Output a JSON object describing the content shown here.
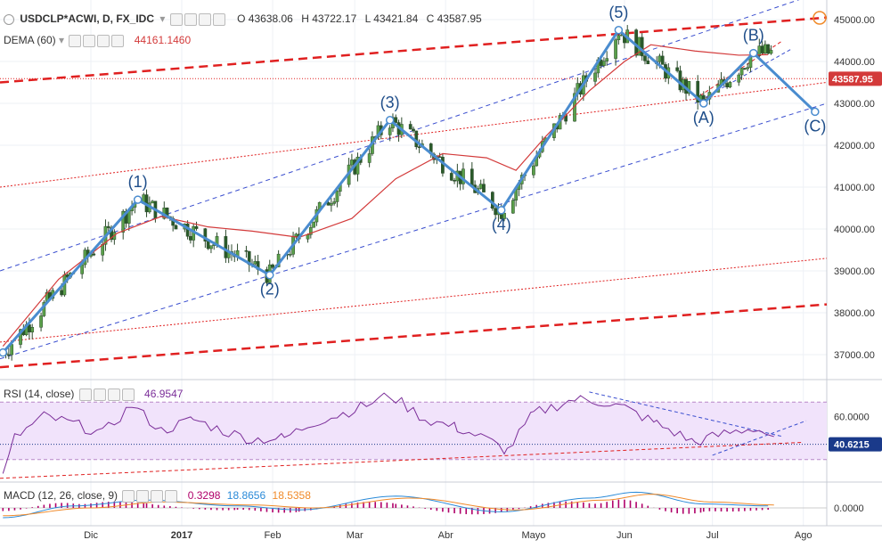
{
  "header": {
    "symbol": "USDCLP*ACWI, D, FX_IDC",
    "o_label": "O",
    "o": "43638.06",
    "h_label": "H",
    "h": "43722.17",
    "l_label": "L",
    "l": "43421.84",
    "c_label": "C",
    "c": "43587.95"
  },
  "dema": {
    "label": "DEMA (60)",
    "value": "44161.1460"
  },
  "rsi": {
    "label": "RSI (14, close)",
    "value": "46.9547",
    "last_badge": "40.6215",
    "tick_60": "60.0000"
  },
  "macd": {
    "label": "MACD (12, 26, close, 9)",
    "v1": "0.3298",
    "v2": "18.8656",
    "v3": "18.5358",
    "tick_0": "0.0000"
  },
  "price_badge": "43587.95",
  "colors": {
    "wave": "#4a8ccf",
    "candle": "#4a8a3a",
    "dema": "#d33a3a",
    "channel_blue": "#3b4fcf",
    "channel_red": "#e02020",
    "rsi_line": "#7b2e99",
    "rsi_band": "#f1e3fb",
    "macd_line": "#2a8ad8",
    "signal_line": "#f08a2a",
    "hist": "#b0006a",
    "badge": "#1a3a8a",
    "price_badge_bg": "#d33a3a"
  },
  "chart_data": {
    "type": "line",
    "title": "USDCLP*ACWI, D, FX_IDC",
    "price_axis_ticks": [
      45000,
      44000,
      43000,
      42000,
      41000,
      40000,
      39000,
      38000,
      37000
    ],
    "price_axis_labels": [
      "45000.00",
      "44000.00",
      "43000.00",
      "42000.00",
      "41000.00",
      "40000.00",
      "39000.00",
      "38000.00",
      "37000.00"
    ],
    "x_tick_labels": [
      "Dic",
      "2017",
      "Feb",
      "Mar",
      "Abr",
      "Mayo",
      "Jun",
      "Jul",
      "Ago"
    ],
    "ylim": [
      36700,
      45200
    ],
    "elliott_wave": {
      "labels": [
        "(1)",
        "(2)",
        "(3)",
        "(4)",
        "(5)",
        "(A)",
        "(B)",
        "(C)"
      ],
      "points": [
        {
          "date": "2016-11-01",
          "price": 37050
        },
        {
          "date": "2016-12-17",
          "price": 40700
        },
        {
          "date": "2017-01-31",
          "price": 38900
        },
        {
          "date": "2017-03-13",
          "price": 42600
        },
        {
          "date": "2017-04-20",
          "price": 40450
        },
        {
          "date": "2017-05-30",
          "price": 44750
        },
        {
          "date": "2017-06-28",
          "price": 43000
        },
        {
          "date": "2017-07-15",
          "price": 44200
        },
        {
          "date": "2017-08-05",
          "price": 42800
        }
      ]
    },
    "series": [
      {
        "name": "DEMA (60)",
        "values": [
          {
            "date": "2016-11-01",
            "price": 37200
          },
          {
            "date": "2016-11-20",
            "price": 38800
          },
          {
            "date": "2016-12-10",
            "price": 39900
          },
          {
            "date": "2016-12-25",
            "price": 40300
          },
          {
            "date": "2017-01-10",
            "price": 40050
          },
          {
            "date": "2017-01-25",
            "price": 39950
          },
          {
            "date": "2017-02-10",
            "price": 39800
          },
          {
            "date": "2017-02-28",
            "price": 40250
          },
          {
            "date": "2017-03-15",
            "price": 41200
          },
          {
            "date": "2017-03-31",
            "price": 41800
          },
          {
            "date": "2017-04-15",
            "price": 41700
          },
          {
            "date": "2017-04-25",
            "price": 41400
          },
          {
            "date": "2017-05-05",
            "price": 42200
          },
          {
            "date": "2017-05-20",
            "price": 43300
          },
          {
            "date": "2017-06-01",
            "price": 44000
          },
          {
            "date": "2017-06-10",
            "price": 44400
          },
          {
            "date": "2017-06-25",
            "price": 44250
          },
          {
            "date": "2017-07-10",
            "price": 44150
          },
          {
            "date": "2017-07-20",
            "price": 44161
          }
        ]
      }
    ],
    "rsi": {
      "ylim": [
        15,
        85
      ],
      "values": [
        {
          "date": "2016-11-01",
          "v": 18
        },
        {
          "date": "2016-11-05",
          "v": 45
        },
        {
          "date": "2016-11-15",
          "v": 60
        },
        {
          "date": "2016-11-25",
          "v": 55
        },
        {
          "date": "2016-12-05",
          "v": 48
        },
        {
          "date": "2016-12-15",
          "v": 68
        },
        {
          "date": "2016-12-25",
          "v": 50
        },
        {
          "date": "2017-01-05",
          "v": 58
        },
        {
          "date": "2017-01-15",
          "v": 50
        },
        {
          "date": "2017-01-25",
          "v": 44
        },
        {
          "date": "2017-02-05",
          "v": 45
        },
        {
          "date": "2017-02-15",
          "v": 56
        },
        {
          "date": "2017-02-25",
          "v": 62
        },
        {
          "date": "2017-03-05",
          "v": 68
        },
        {
          "date": "2017-03-13",
          "v": 75
        },
        {
          "date": "2017-03-25",
          "v": 58
        },
        {
          "date": "2017-04-05",
          "v": 52
        },
        {
          "date": "2017-04-15",
          "v": 44
        },
        {
          "date": "2017-04-22",
          "v": 36
        },
        {
          "date": "2017-05-01",
          "v": 62
        },
        {
          "date": "2017-05-15",
          "v": 72
        },
        {
          "date": "2017-05-25",
          "v": 70
        },
        {
          "date": "2017-06-01",
          "v": 66
        },
        {
          "date": "2017-06-12",
          "v": 55
        },
        {
          "date": "2017-06-25",
          "v": 42
        },
        {
          "date": "2017-07-05",
          "v": 48
        },
        {
          "date": "2017-07-15",
          "v": 52
        },
        {
          "date": "2017-07-22",
          "v": 46
        }
      ],
      "last": 40.6215
    },
    "macd": {
      "macd_line": [
        {
          "date": "2016-11-01",
          "v": -10
        },
        {
          "date": "2016-11-25",
          "v": 2
        },
        {
          "date": "2016-12-20",
          "v": 8
        },
        {
          "date": "2017-01-20",
          "v": 2
        },
        {
          "date": "2017-02-10",
          "v": -2
        },
        {
          "date": "2017-03-15",
          "v": 12
        },
        {
          "date": "2017-04-20",
          "v": -4
        },
        {
          "date": "2017-05-20",
          "v": 10
        },
        {
          "date": "2017-06-05",
          "v": 16
        },
        {
          "date": "2017-06-28",
          "v": 4
        },
        {
          "date": "2017-07-20",
          "v": 2
        }
      ],
      "signal_line": [
        {
          "date": "2016-11-01",
          "v": -8
        },
        {
          "date": "2016-12-01",
          "v": 0
        },
        {
          "date": "2016-12-25",
          "v": 6
        },
        {
          "date": "2017-01-25",
          "v": 3
        },
        {
          "date": "2017-02-15",
          "v": 0
        },
        {
          "date": "2017-03-20",
          "v": 10
        },
        {
          "date": "2017-04-25",
          "v": -2
        },
        {
          "date": "2017-05-25",
          "v": 8
        },
        {
          "date": "2017-06-10",
          "v": 14
        },
        {
          "date": "2017-07-01",
          "v": 6
        },
        {
          "date": "2017-07-22",
          "v": 3
        }
      ]
    }
  }
}
